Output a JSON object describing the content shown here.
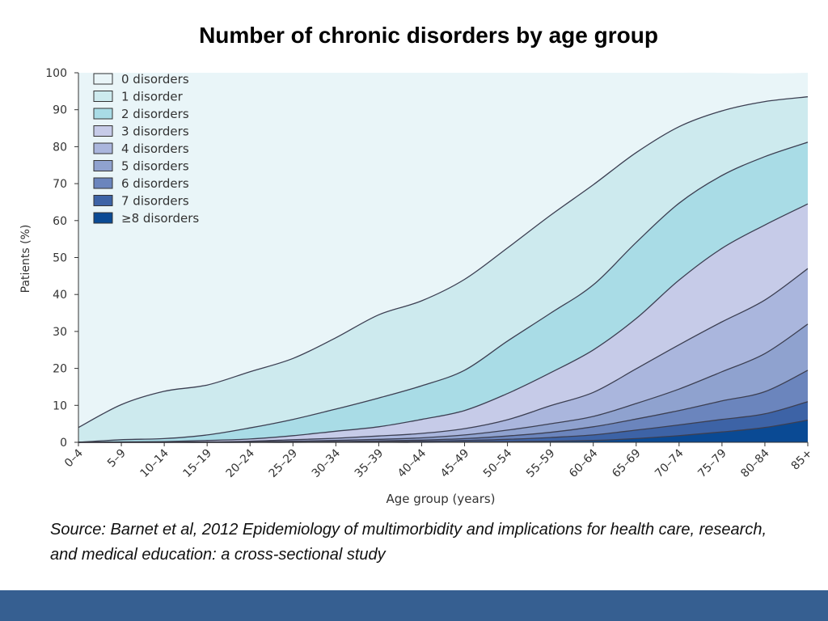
{
  "slide": {
    "title": "Number of chronic disorders by age group",
    "source": "Source: Barnet et al, 2012 Epidemiology of multimorbidity and implications for health care, research, and medical education: a cross-sectional study",
    "footer_color": "#365f91"
  },
  "chart_data": {
    "type": "area",
    "stacked": true,
    "title": "",
    "xlabel": "Age group (years)",
    "ylabel": "Patients (%)",
    "ylim": [
      0,
      100
    ],
    "yticks": [
      0,
      10,
      20,
      30,
      40,
      50,
      60,
      70,
      80,
      90,
      100
    ],
    "grid": false,
    "legend_position": "top-left",
    "categories": [
      "0–4",
      "5–9",
      "10–14",
      "15–19",
      "20–24",
      "25–29",
      "30–34",
      "35–39",
      "40–44",
      "45–49",
      "50–54",
      "55–59",
      "60–64",
      "65–69",
      "70–74",
      "75–79",
      "80–84",
      "85+"
    ],
    "series": [
      {
        "name": "≥8 disorders",
        "color": "#0a4a94",
        "values": [
          0,
          0,
          0,
          0,
          0,
          0,
          0,
          0,
          0,
          0.1,
          0.2,
          0.3,
          0.5,
          1.0,
          1.8,
          2.8,
          4.0,
          6.0
        ]
      },
      {
        "name": "7 disorders",
        "color": "#3d63a6",
        "values": [
          0,
          0,
          0,
          0,
          0,
          0,
          0.1,
          0.2,
          0.3,
          0.4,
          0.6,
          1.0,
          1.5,
          2.3,
          2.9,
          3.4,
          3.7,
          5.0
        ]
      },
      {
        "name": "6 disorders",
        "color": "#6b85bd",
        "values": [
          0,
          0,
          0,
          0,
          0,
          0.1,
          0.1,
          0.2,
          0.3,
          0.5,
          0.9,
          1.4,
          2.2,
          3.0,
          3.9,
          5.0,
          6.0,
          8.5
        ]
      },
      {
        "name": "5 disorders",
        "color": "#8fa2cf",
        "values": [
          0,
          0,
          0,
          0,
          0.1,
          0.2,
          0.3,
          0.4,
          0.6,
          1.0,
          1.6,
          2.3,
          2.8,
          4.2,
          5.8,
          7.9,
          10.3,
          12.5
        ]
      },
      {
        "name": "4 disorders",
        "color": "#aab6dd",
        "values": [
          0,
          0,
          0,
          0.1,
          0.2,
          0.4,
          0.6,
          0.9,
          1.2,
          1.7,
          2.8,
          4.9,
          6.5,
          9.4,
          12.0,
          13.5,
          14.5,
          15.0
        ]
      },
      {
        "name": "3 disorders",
        "color": "#c6cbe8",
        "values": [
          0,
          0.1,
          0.2,
          0.4,
          0.6,
          1.1,
          1.9,
          2.5,
          3.8,
          4.9,
          7.1,
          8.9,
          11.5,
          13.6,
          17.5,
          19.9,
          20.3,
          17.5
        ]
      },
      {
        "name": "2 disorders",
        "color": "#a9dce6",
        "values": [
          0,
          0.6,
          0.8,
          1.5,
          3.0,
          4.4,
          6.0,
          7.8,
          9.1,
          10.9,
          14.2,
          16.1,
          17.6,
          20.6,
          20.8,
          19.7,
          18.5,
          16.7
        ]
      },
      {
        "name": "1 disorder",
        "color": "#cdeaee",
        "values": [
          4.0,
          9.5,
          12.8,
          13.5,
          15.2,
          16.5,
          19.3,
          22.5,
          23.0,
          24.6,
          25.2,
          26.5,
          27.1,
          24.3,
          20.7,
          17.5,
          14.9,
          12.3
        ]
      },
      {
        "name": "0 disorders",
        "color": "#e9f5f8",
        "values": [
          96.0,
          89.8,
          86.2,
          84.5,
          80.9,
          77.3,
          71.7,
          65.5,
          61.7,
          55.9,
          47.4,
          38.6,
          30.3,
          21.6,
          14.6,
          10.3,
          7.6,
          6.5
        ]
      }
    ]
  }
}
